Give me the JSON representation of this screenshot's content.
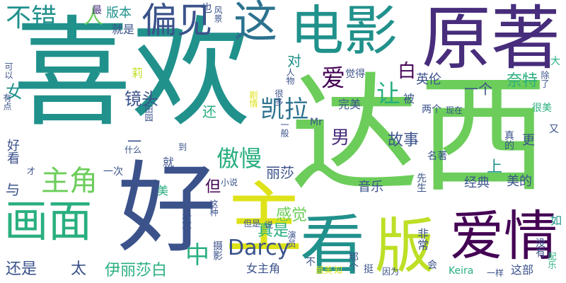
{
  "palette": {
    "yellow": "#bddf26",
    "green_light": "#6ccd5a",
    "green": "#29af7f",
    "teal": "#21918c",
    "blue_teal": "#2c728e",
    "blue": "#3b528b",
    "purple": "#472d7b",
    "dark": "#440154",
    "lime": "#dde318"
  },
  "words": [
    {
      "text": "喜欢",
      "color": "teal"
    },
    {
      "text": "达西",
      "color": "green_light"
    },
    {
      "text": "电影",
      "color": "teal"
    },
    {
      "text": "原著",
      "color": "purple"
    },
    {
      "text": "好",
      "color": "blue"
    },
    {
      "text": "主",
      "color": "lime"
    },
    {
      "text": "版",
      "color": "yellow"
    },
    {
      "text": "看",
      "color": "teal"
    },
    {
      "text": "爱情",
      "color": "dark"
    },
    {
      "text": "画面",
      "color": "green"
    },
    {
      "text": "这",
      "color": "blue_teal"
    },
    {
      "text": "偏见",
      "color": "blue"
    },
    {
      "text": "不错",
      "color": "teal"
    },
    {
      "text": "人",
      "color": "green_light"
    },
    {
      "text": "主角",
      "color": "green_light"
    },
    {
      "text": "凯拉",
      "color": "blue_teal"
    },
    {
      "text": "傲慢",
      "color": "green"
    },
    {
      "text": "Darcy",
      "color": "blue"
    },
    {
      "text": "中",
      "color": "green"
    },
    {
      "text": "爱",
      "color": "dark"
    },
    {
      "text": "让",
      "color": "green"
    },
    {
      "text": "白",
      "color": "dark"
    },
    {
      "text": "故事",
      "color": "blue"
    },
    {
      "text": "男",
      "color": "purple"
    },
    {
      "text": "镜头",
      "color": "blue"
    },
    {
      "text": "丽莎",
      "color": "blue"
    },
    {
      "text": "伊丽莎白",
      "color": "green"
    },
    {
      "text": "还是",
      "color": "blue"
    },
    {
      "text": "真是",
      "color": "green"
    },
    {
      "text": "感觉",
      "color": "green_light"
    },
    {
      "text": "音乐",
      "color": "blue"
    },
    {
      "text": "一个",
      "color": "blue"
    },
    {
      "text": "英伦",
      "color": "blue"
    },
    {
      "text": "奈特",
      "color": "green"
    },
    {
      "text": "女",
      "color": "teal"
    },
    {
      "text": "对",
      "color": "teal"
    },
    {
      "text": "上",
      "color": "teal"
    },
    {
      "text": "美的",
      "color": "blue"
    },
    {
      "text": "经典",
      "color": "blue"
    },
    {
      "text": "太",
      "color": "blue"
    },
    {
      "text": "但",
      "color": "dark"
    },
    {
      "text": "与",
      "color": "blue"
    },
    {
      "text": "好看",
      "color": "blue"
    },
    {
      "text": "非常",
      "color": "blue"
    },
    {
      "text": "就是",
      "color": "blue"
    },
    {
      "text": "版本",
      "color": "teal"
    },
    {
      "text": "最",
      "color": "purple"
    },
    {
      "text": "也",
      "color": "blue"
    },
    {
      "text": "风景",
      "color": "blue"
    },
    {
      "text": "还",
      "color": "green"
    },
    {
      "text": "完美",
      "color": "blue"
    },
    {
      "text": "被",
      "color": "blue"
    },
    {
      "text": "两个",
      "color": "blue"
    },
    {
      "text": "现在",
      "color": "blue"
    },
    {
      "text": "很美",
      "color": "green"
    },
    {
      "text": "又",
      "color": "blue"
    },
    {
      "text": "更",
      "color": "blue"
    },
    {
      "text": "名著",
      "color": "blue"
    },
    {
      "text": "先生",
      "color": "blue"
    },
    {
      "text": "Keira",
      "color": "green"
    },
    {
      "text": "一样",
      "color": "blue"
    },
    {
      "text": "这部",
      "color": "blue"
    },
    {
      "text": "会",
      "color": "blue"
    },
    {
      "text": "配乐",
      "color": "green"
    },
    {
      "text": "没有",
      "color": "blue"
    },
    {
      "text": "如",
      "color": "teal"
    },
    {
      "text": "除了",
      "color": "blue"
    },
    {
      "text": "大",
      "color": "green"
    },
    {
      "text": "觉得",
      "color": "blue"
    },
    {
      "text": "人物",
      "color": "blue"
    },
    {
      "text": "剧情",
      "color": "lime"
    },
    {
      "text": "很多",
      "color": "blue"
    },
    {
      "text": "一般",
      "color": "blue"
    },
    {
      "text": "Mr",
      "color": "blue"
    },
    {
      "text": "莉",
      "color": "yellow"
    },
    {
      "text": "有点",
      "color": "blue"
    },
    {
      "text": "可以",
      "color": "blue"
    },
    {
      "text": "田园",
      "color": "blue"
    },
    {
      "text": "一次",
      "color": "blue"
    },
    {
      "text": "什么",
      "color": "blue"
    },
    {
      "text": "才",
      "color": "blue"
    },
    {
      "text": "到",
      "color": "blue"
    },
    {
      "text": "一",
      "color": "blue"
    },
    {
      "text": "就",
      "color": "blue"
    },
    {
      "text": "小说",
      "color": "blue"
    },
    {
      "text": "美",
      "color": "green"
    },
    {
      "text": "这种",
      "color": "blue"
    },
    {
      "text": "这个",
      "color": "blue"
    },
    {
      "text": "但是",
      "color": "blue"
    },
    {
      "text": "说",
      "color": "blue"
    },
    {
      "text": "演员",
      "color": "blue"
    },
    {
      "text": "女主角",
      "color": "blue"
    },
    {
      "text": "摄影",
      "color": "blue"
    },
    {
      "text": "不",
      "color": "blue"
    },
    {
      "text": "最美",
      "color": "lime"
    },
    {
      "text": "知",
      "color": "lime"
    },
    {
      "text": "那个",
      "color": "blue"
    },
    {
      "text": "挺",
      "color": "blue"
    },
    {
      "text": "因为",
      "color": "blue"
    },
    {
      "text": "真的",
      "color": "blue"
    }
  ]
}
